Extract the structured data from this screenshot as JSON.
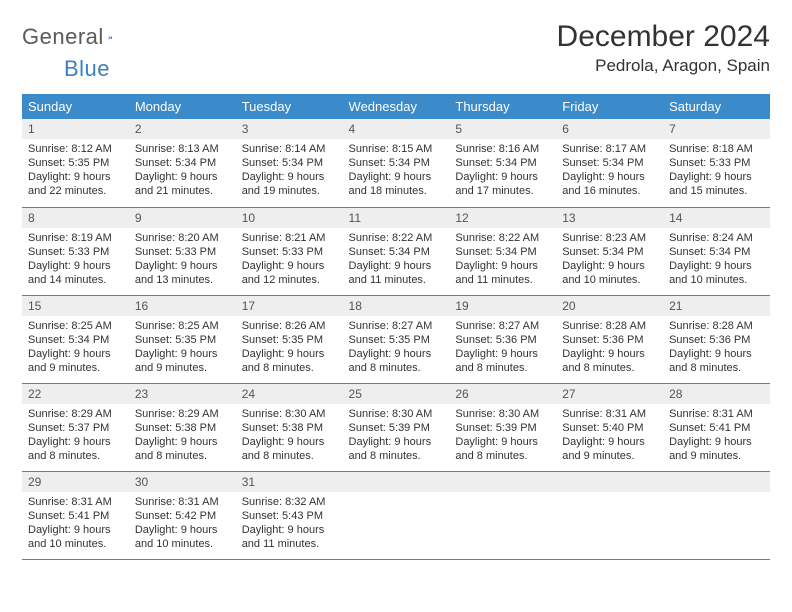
{
  "brand": {
    "part1": "General",
    "part2": "Blue"
  },
  "title": "December 2024",
  "location": "Pedrola, Aragon, Spain",
  "colors": {
    "header_bg": "#3b8aca",
    "header_text": "#ffffff",
    "row_border": "#3b8aca",
    "daynum_bg": "#eeeeee",
    "body_text": "#333333",
    "logo_gray": "#5a5a5a",
    "logo_blue": "#3b7fc4"
  },
  "typography": {
    "month_title_pt": 30,
    "location_pt": 17,
    "weekday_pt": 13,
    "daynum_pt": 12,
    "body_pt": 11
  },
  "weekdays": [
    "Sunday",
    "Monday",
    "Tuesday",
    "Wednesday",
    "Thursday",
    "Friday",
    "Saturday"
  ],
  "weeks": [
    [
      {
        "n": "1",
        "sr": "Sunrise: 8:12 AM",
        "ss": "Sunset: 5:35 PM",
        "d1": "Daylight: 9 hours",
        "d2": "and 22 minutes."
      },
      {
        "n": "2",
        "sr": "Sunrise: 8:13 AM",
        "ss": "Sunset: 5:34 PM",
        "d1": "Daylight: 9 hours",
        "d2": "and 21 minutes."
      },
      {
        "n": "3",
        "sr": "Sunrise: 8:14 AM",
        "ss": "Sunset: 5:34 PM",
        "d1": "Daylight: 9 hours",
        "d2": "and 19 minutes."
      },
      {
        "n": "4",
        "sr": "Sunrise: 8:15 AM",
        "ss": "Sunset: 5:34 PM",
        "d1": "Daylight: 9 hours",
        "d2": "and 18 minutes."
      },
      {
        "n": "5",
        "sr": "Sunrise: 8:16 AM",
        "ss": "Sunset: 5:34 PM",
        "d1": "Daylight: 9 hours",
        "d2": "and 17 minutes."
      },
      {
        "n": "6",
        "sr": "Sunrise: 8:17 AM",
        "ss": "Sunset: 5:34 PM",
        "d1": "Daylight: 9 hours",
        "d2": "and 16 minutes."
      },
      {
        "n": "7",
        "sr": "Sunrise: 8:18 AM",
        "ss": "Sunset: 5:33 PM",
        "d1": "Daylight: 9 hours",
        "d2": "and 15 minutes."
      }
    ],
    [
      {
        "n": "8",
        "sr": "Sunrise: 8:19 AM",
        "ss": "Sunset: 5:33 PM",
        "d1": "Daylight: 9 hours",
        "d2": "and 14 minutes."
      },
      {
        "n": "9",
        "sr": "Sunrise: 8:20 AM",
        "ss": "Sunset: 5:33 PM",
        "d1": "Daylight: 9 hours",
        "d2": "and 13 minutes."
      },
      {
        "n": "10",
        "sr": "Sunrise: 8:21 AM",
        "ss": "Sunset: 5:33 PM",
        "d1": "Daylight: 9 hours",
        "d2": "and 12 minutes."
      },
      {
        "n": "11",
        "sr": "Sunrise: 8:22 AM",
        "ss": "Sunset: 5:34 PM",
        "d1": "Daylight: 9 hours",
        "d2": "and 11 minutes."
      },
      {
        "n": "12",
        "sr": "Sunrise: 8:22 AM",
        "ss": "Sunset: 5:34 PM",
        "d1": "Daylight: 9 hours",
        "d2": "and 11 minutes."
      },
      {
        "n": "13",
        "sr": "Sunrise: 8:23 AM",
        "ss": "Sunset: 5:34 PM",
        "d1": "Daylight: 9 hours",
        "d2": "and 10 minutes."
      },
      {
        "n": "14",
        "sr": "Sunrise: 8:24 AM",
        "ss": "Sunset: 5:34 PM",
        "d1": "Daylight: 9 hours",
        "d2": "and 10 minutes."
      }
    ],
    [
      {
        "n": "15",
        "sr": "Sunrise: 8:25 AM",
        "ss": "Sunset: 5:34 PM",
        "d1": "Daylight: 9 hours",
        "d2": "and 9 minutes."
      },
      {
        "n": "16",
        "sr": "Sunrise: 8:25 AM",
        "ss": "Sunset: 5:35 PM",
        "d1": "Daylight: 9 hours",
        "d2": "and 9 minutes."
      },
      {
        "n": "17",
        "sr": "Sunrise: 8:26 AM",
        "ss": "Sunset: 5:35 PM",
        "d1": "Daylight: 9 hours",
        "d2": "and 8 minutes."
      },
      {
        "n": "18",
        "sr": "Sunrise: 8:27 AM",
        "ss": "Sunset: 5:35 PM",
        "d1": "Daylight: 9 hours",
        "d2": "and 8 minutes."
      },
      {
        "n": "19",
        "sr": "Sunrise: 8:27 AM",
        "ss": "Sunset: 5:36 PM",
        "d1": "Daylight: 9 hours",
        "d2": "and 8 minutes."
      },
      {
        "n": "20",
        "sr": "Sunrise: 8:28 AM",
        "ss": "Sunset: 5:36 PM",
        "d1": "Daylight: 9 hours",
        "d2": "and 8 minutes."
      },
      {
        "n": "21",
        "sr": "Sunrise: 8:28 AM",
        "ss": "Sunset: 5:36 PM",
        "d1": "Daylight: 9 hours",
        "d2": "and 8 minutes."
      }
    ],
    [
      {
        "n": "22",
        "sr": "Sunrise: 8:29 AM",
        "ss": "Sunset: 5:37 PM",
        "d1": "Daylight: 9 hours",
        "d2": "and 8 minutes."
      },
      {
        "n": "23",
        "sr": "Sunrise: 8:29 AM",
        "ss": "Sunset: 5:38 PM",
        "d1": "Daylight: 9 hours",
        "d2": "and 8 minutes."
      },
      {
        "n": "24",
        "sr": "Sunrise: 8:30 AM",
        "ss": "Sunset: 5:38 PM",
        "d1": "Daylight: 9 hours",
        "d2": "and 8 minutes."
      },
      {
        "n": "25",
        "sr": "Sunrise: 8:30 AM",
        "ss": "Sunset: 5:39 PM",
        "d1": "Daylight: 9 hours",
        "d2": "and 8 minutes."
      },
      {
        "n": "26",
        "sr": "Sunrise: 8:30 AM",
        "ss": "Sunset: 5:39 PM",
        "d1": "Daylight: 9 hours",
        "d2": "and 8 minutes."
      },
      {
        "n": "27",
        "sr": "Sunrise: 8:31 AM",
        "ss": "Sunset: 5:40 PM",
        "d1": "Daylight: 9 hours",
        "d2": "and 9 minutes."
      },
      {
        "n": "28",
        "sr": "Sunrise: 8:31 AM",
        "ss": "Sunset: 5:41 PM",
        "d1": "Daylight: 9 hours",
        "d2": "and 9 minutes."
      }
    ],
    [
      {
        "n": "29",
        "sr": "Sunrise: 8:31 AM",
        "ss": "Sunset: 5:41 PM",
        "d1": "Daylight: 9 hours",
        "d2": "and 10 minutes."
      },
      {
        "n": "30",
        "sr": "Sunrise: 8:31 AM",
        "ss": "Sunset: 5:42 PM",
        "d1": "Daylight: 9 hours",
        "d2": "and 10 minutes."
      },
      {
        "n": "31",
        "sr": "Sunrise: 8:32 AM",
        "ss": "Sunset: 5:43 PM",
        "d1": "Daylight: 9 hours",
        "d2": "and 11 minutes."
      },
      null,
      null,
      null,
      null
    ]
  ]
}
